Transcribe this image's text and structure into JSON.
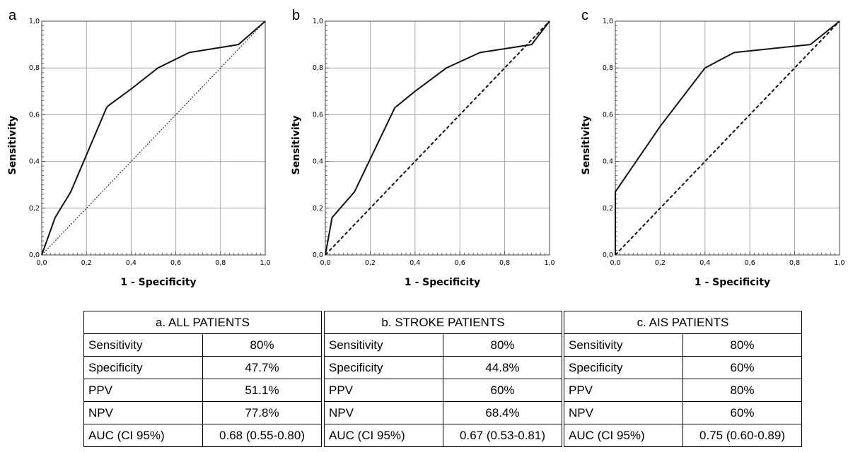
{
  "chart_data": [
    {
      "type": "line",
      "panel_label": "a",
      "xlabel": "1 - Specificity",
      "ylabel": "Sensitivity",
      "xlim": [
        0,
        1
      ],
      "ylim": [
        0,
        1
      ],
      "tick_labels": [
        "0,0",
        "0,2",
        "0,4",
        "0,6",
        "0,8",
        "1,0"
      ],
      "grid": true,
      "series": [
        {
          "style": "solid",
          "x": [
            0,
            0.06,
            0.13,
            0.29,
            0.3,
            0.4,
            0.52,
            0.66,
            0.88,
            1.0
          ],
          "y": [
            0,
            0.16,
            0.27,
            0.63,
            0.64,
            0.71,
            0.8,
            0.866,
            0.9,
            1.0
          ]
        },
        {
          "style": "dotted",
          "x": [
            0,
            1
          ],
          "y": [
            0,
            1
          ]
        }
      ]
    },
    {
      "type": "line",
      "panel_label": "b",
      "xlabel": "1 - Specificity",
      "ylabel": "Sensitivity",
      "xlim": [
        0,
        1
      ],
      "ylim": [
        0,
        1
      ],
      "tick_labels": [
        "0,0",
        "0,2",
        "0,4",
        "0,6",
        "0,8",
        "1,0"
      ],
      "grid": true,
      "series": [
        {
          "style": "solid",
          "x": [
            0,
            0.03,
            0.13,
            0.31,
            0.4,
            0.54,
            0.69,
            0.92,
            1.0
          ],
          "y": [
            0,
            0.16,
            0.27,
            0.63,
            0.7,
            0.8,
            0.866,
            0.9,
            1.0
          ]
        },
        {
          "style": "dashed",
          "x": [
            0,
            1
          ],
          "y": [
            0,
            1
          ]
        }
      ]
    },
    {
      "type": "line",
      "panel_label": "c",
      "xlabel": "1 - Specificity",
      "ylabel": "Sensitivity",
      "xlim": [
        0,
        1
      ],
      "ylim": [
        0,
        1
      ],
      "tick_labels": [
        "0,0",
        "0,2",
        "0,4",
        "0,6",
        "0,8",
        "1,0"
      ],
      "grid": true,
      "series": [
        {
          "style": "solid",
          "x": [
            0,
            0,
            0.2,
            0.4,
            0.53,
            0.87,
            1.0
          ],
          "y": [
            0,
            0.27,
            0.55,
            0.8,
            0.866,
            0.9,
            1.0
          ]
        },
        {
          "style": "dashed",
          "x": [
            0,
            1
          ],
          "y": [
            0,
            1
          ]
        }
      ]
    }
  ],
  "table": {
    "groups": [
      {
        "title": "a. ALL PATIENTS",
        "rows": [
          [
            "Sensitivity",
            "80%"
          ],
          [
            "Specificity",
            "47.7%"
          ],
          [
            "PPV",
            "51.1%"
          ],
          [
            "NPV",
            "77.8%"
          ],
          [
            "AUC (CI 95%)",
            "0.68 (0.55-0.80)"
          ]
        ]
      },
      {
        "title": "b. STROKE PATIENTS",
        "rows": [
          [
            "Sensitivity",
            "80%"
          ],
          [
            "Specificity",
            "44.8%"
          ],
          [
            "PPV",
            "60%"
          ],
          [
            "NPV",
            "68.4%"
          ],
          [
            "AUC (CI 95%)",
            "0.67 (0.53-0.81)"
          ]
        ]
      },
      {
        "title": "c. AIS PATIENTS",
        "rows": [
          [
            "Sensitivity",
            "80%"
          ],
          [
            "Specificity",
            "60%"
          ],
          [
            "PPV",
            "80%"
          ],
          [
            "NPV",
            "60%"
          ],
          [
            "AUC (CI 95%)",
            "0.75 (0.60-0.89)"
          ]
        ]
      }
    ]
  }
}
